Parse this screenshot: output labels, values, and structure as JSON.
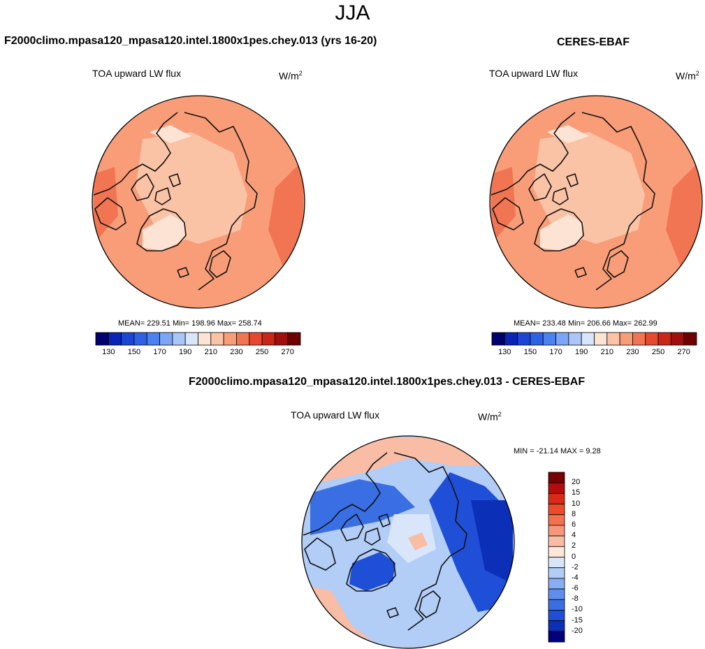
{
  "figure": {
    "season": "JJA"
  },
  "chart_data": [
    {
      "type": "heatmap",
      "projection": "north polar stereographic",
      "panel_title": "F2000climo.mpasa120_mpasa120.intel.1800x1pes.chey.013 (yrs 16-20)",
      "title": "TOA upward LW flux",
      "units": {
        "base": "W/m",
        "exp": "2"
      },
      "stats_text": "MEAN= 229.51  Min= 198.96  Max= 258.74",
      "stats": {
        "mean": 229.51,
        "min": 198.96,
        "max": 258.74
      },
      "colorbar": {
        "orientation": "horizontal",
        "levels": [
          130,
          140,
          150,
          160,
          170,
          180,
          190,
          200,
          210,
          220,
          230,
          240,
          250,
          260,
          270
        ],
        "tick_labels": [
          "130",
          "150",
          "170",
          "190",
          "210",
          "230",
          "250",
          "270"
        ],
        "colors": [
          "#00006e",
          "#0a24b5",
          "#1b45d4",
          "#2e62e6",
          "#4b82f0",
          "#7aa6f5",
          "#a9c6f7",
          "#d7e6fa",
          "#fde3d3",
          "#fbc3a6",
          "#f99d79",
          "#f27553",
          "#e7492e",
          "#c82617",
          "#a00e0e",
          "#6e0000"
        ]
      }
    },
    {
      "type": "heatmap",
      "projection": "north polar stereographic",
      "panel_title": "CERES-EBAF",
      "title": "TOA upward LW flux",
      "units": {
        "base": "W/m",
        "exp": "2"
      },
      "stats_text": "MEAN= 233.48  Min= 206.66  Max= 262.99",
      "stats": {
        "mean": 233.48,
        "min": 206.66,
        "max": 262.99
      },
      "colorbar": {
        "orientation": "horizontal",
        "levels": [
          130,
          140,
          150,
          160,
          170,
          180,
          190,
          200,
          210,
          220,
          230,
          240,
          250,
          260,
          270
        ],
        "tick_labels": [
          "130",
          "150",
          "170",
          "190",
          "210",
          "230",
          "250",
          "270"
        ],
        "colors": [
          "#00006e",
          "#0a24b5",
          "#1b45d4",
          "#2e62e6",
          "#4b82f0",
          "#7aa6f5",
          "#a9c6f7",
          "#d7e6fa",
          "#fde3d3",
          "#fbc3a6",
          "#f99d79",
          "#f27553",
          "#e7492e",
          "#c82617",
          "#a00e0e",
          "#6e0000"
        ]
      }
    },
    {
      "type": "heatmap",
      "projection": "north polar stereographic",
      "panel_title": "F2000climo.mpasa120_mpasa120.intel.1800x1pes.chey.013 - CERES-EBAF",
      "title": "TOA upward LW flux",
      "units": {
        "base": "W/m",
        "exp": "2"
      },
      "stats_text": "MIN = -21.14 MAX =   9.28",
      "stats": {
        "min": -21.14,
        "max": 9.28
      },
      "colorbar": {
        "orientation": "vertical",
        "tick_labels": [
          "20",
          "15",
          "10",
          "8",
          "6",
          "4",
          "2",
          "0",
          "-2",
          "-4",
          "-6",
          "-8",
          "-10",
          "-15",
          "-20"
        ],
        "colors": [
          "#780000",
          "#b30c0c",
          "#db2a14",
          "#ef4a28",
          "#f4714d",
          "#f7967a",
          "#f9bda6",
          "#fde7d9",
          "#d9e6fa",
          "#b2cdf6",
          "#87aef2",
          "#5f8eec",
          "#3a6fe3",
          "#1f4fd6",
          "#0c2fb8",
          "#00007a"
        ]
      }
    }
  ]
}
